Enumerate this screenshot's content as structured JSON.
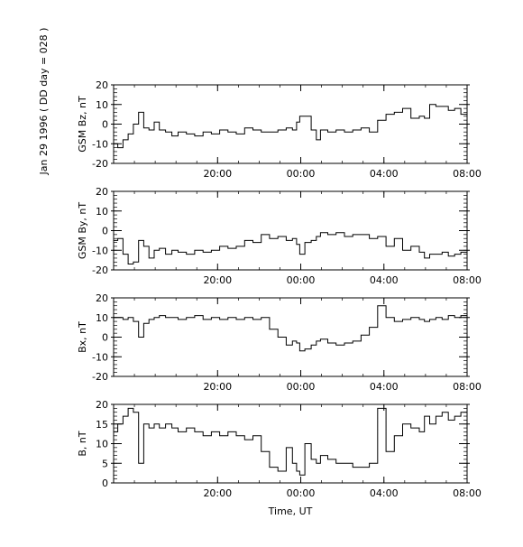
{
  "figure": {
    "date_label": "Jan 29 1996  ( DD day = 028 )",
    "xlabel": "Time, UT"
  },
  "chart_data": [
    {
      "type": "line",
      "ylabel": "GSM Bz, nT",
      "ylim": [
        -20,
        20
      ],
      "yticks": [
        -20,
        -10,
        0,
        10,
        20
      ],
      "xlim": [
        15.0,
        32.0
      ],
      "xticks": [
        20,
        24,
        28,
        32
      ],
      "xtick_labels": [
        "20:00",
        "00:00",
        "04:00",
        "08:00"
      ],
      "x": [
        15.0,
        15.2,
        15.45,
        15.7,
        15.95,
        16.2,
        16.45,
        16.7,
        16.95,
        17.2,
        17.5,
        17.8,
        18.1,
        18.5,
        18.9,
        19.3,
        19.7,
        20.1,
        20.5,
        20.9,
        21.3,
        21.7,
        22.1,
        22.5,
        22.9,
        23.3,
        23.6,
        23.8,
        23.95,
        24.2,
        24.5,
        24.75,
        24.95,
        25.3,
        25.7,
        26.1,
        26.5,
        26.9,
        27.3,
        27.7,
        28.1,
        28.5,
        28.9,
        29.3,
        29.7,
        29.95,
        30.2,
        30.5,
        30.8,
        31.1,
        31.4,
        31.7,
        32.0
      ],
      "y": [
        -10,
        -12,
        -8,
        -5,
        0,
        6,
        -2,
        -3,
        1,
        -3,
        -4,
        -6,
        -4,
        -5,
        -6,
        -4,
        -5,
        -3,
        -4,
        -5,
        -2,
        -3,
        -4,
        -4,
        -3,
        -2,
        -3,
        1,
        4,
        4,
        -3,
        -8,
        -3,
        -4,
        -3,
        -4,
        -3,
        -2,
        -4,
        2,
        5,
        6,
        8,
        3,
        4,
        3,
        10,
        9,
        9,
        7,
        8,
        5,
        5
      ]
    },
    {
      "type": "line",
      "ylabel": "GSM By, nT",
      "ylim": [
        -20,
        20
      ],
      "yticks": [
        -20,
        -10,
        0,
        10,
        20
      ],
      "xlim": [
        15.0,
        32.0
      ],
      "xticks": [
        20,
        24,
        28,
        32
      ],
      "xtick_labels": [
        "20:00",
        "00:00",
        "04:00",
        "08:00"
      ],
      "x": [
        15.0,
        15.2,
        15.45,
        15.7,
        15.95,
        16.2,
        16.45,
        16.7,
        16.95,
        17.2,
        17.5,
        17.8,
        18.1,
        18.5,
        18.9,
        19.3,
        19.7,
        20.1,
        20.5,
        20.9,
        21.3,
        21.7,
        22.1,
        22.5,
        22.9,
        23.3,
        23.6,
        23.8,
        23.95,
        24.2,
        24.5,
        24.75,
        24.95,
        25.3,
        25.7,
        26.1,
        26.5,
        26.9,
        27.3,
        27.7,
        28.1,
        28.5,
        28.9,
        29.3,
        29.7,
        29.95,
        30.2,
        30.5,
        30.8,
        31.1,
        31.4,
        31.7,
        32.0
      ],
      "y": [
        -5,
        -4,
        -12,
        -17,
        -16,
        -5,
        -8,
        -14,
        -10,
        -9,
        -12,
        -10,
        -11,
        -12,
        -10,
        -11,
        -10,
        -8,
        -9,
        -8,
        -5,
        -6,
        -2,
        -4,
        -3,
        -5,
        -4,
        -7,
        -12,
        -6,
        -5,
        -3,
        -1,
        -2,
        -1,
        -3,
        -2,
        -2,
        -4,
        -3,
        -8,
        -4,
        -10,
        -8,
        -11,
        -14,
        -12,
        -12,
        -11,
        -13,
        -12,
        -11,
        -12
      ]
    },
    {
      "type": "line",
      "ylabel": "Bx, nT",
      "ylim": [
        -20,
        20
      ],
      "yticks": [
        -20,
        -10,
        0,
        10,
        20
      ],
      "xlim": [
        15.0,
        32.0
      ],
      "xticks": [
        20,
        24,
        28,
        32
      ],
      "xtick_labels": [
        "20:00",
        "00:00",
        "04:00",
        "08:00"
      ],
      "x": [
        15.0,
        15.2,
        15.45,
        15.7,
        15.95,
        16.2,
        16.45,
        16.7,
        16.95,
        17.2,
        17.5,
        17.8,
        18.1,
        18.5,
        18.9,
        19.3,
        19.7,
        20.1,
        20.5,
        20.9,
        21.3,
        21.7,
        22.1,
        22.5,
        22.9,
        23.3,
        23.6,
        23.8,
        23.95,
        24.2,
        24.5,
        24.75,
        24.95,
        25.3,
        25.7,
        26.1,
        26.5,
        26.9,
        27.3,
        27.7,
        28.1,
        28.5,
        28.9,
        29.3,
        29.7,
        29.95,
        30.2,
        30.5,
        30.8,
        31.1,
        31.4,
        31.7,
        32.0
      ],
      "y": [
        10,
        10,
        9,
        10,
        8,
        0,
        7,
        9,
        10,
        11,
        10,
        10,
        9,
        10,
        11,
        9,
        10,
        9,
        10,
        9,
        10,
        9,
        10,
        4,
        0,
        -4,
        -2,
        -3,
        -7,
        -6,
        -4,
        -2,
        -1,
        -3,
        -4,
        -3,
        -2,
        1,
        5,
        16,
        10,
        8,
        9,
        10,
        9,
        8,
        9,
        10,
        9,
        11,
        10,
        11,
        11
      ]
    },
    {
      "type": "line",
      "ylabel": "B, nT",
      "ylim": [
        0,
        20
      ],
      "yticks": [
        0,
        5,
        10,
        15,
        20
      ],
      "xlim": [
        15.0,
        32.0
      ],
      "xticks": [
        20,
        24,
        28,
        32
      ],
      "xtick_labels": [
        "20:00",
        "00:00",
        "04:00",
        "08:00"
      ],
      "x": [
        15.0,
        15.2,
        15.45,
        15.7,
        15.95,
        16.2,
        16.45,
        16.7,
        16.95,
        17.2,
        17.5,
        17.8,
        18.1,
        18.5,
        18.9,
        19.3,
        19.7,
        20.1,
        20.5,
        20.9,
        21.3,
        21.7,
        22.1,
        22.5,
        22.9,
        23.3,
        23.6,
        23.8,
        23.95,
        24.2,
        24.5,
        24.75,
        24.95,
        25.3,
        25.7,
        26.1,
        26.5,
        26.9,
        27.3,
        27.7,
        28.1,
        28.5,
        28.9,
        29.3,
        29.7,
        29.95,
        30.2,
        30.5,
        30.8,
        31.1,
        31.4,
        31.7,
        32.0
      ],
      "y": [
        13,
        15,
        17,
        19,
        18,
        5,
        15,
        14,
        15,
        14,
        15,
        14,
        13,
        14,
        13,
        12,
        13,
        12,
        13,
        12,
        11,
        12,
        8,
        4,
        3,
        9,
        5,
        3,
        2,
        10,
        6,
        5,
        7,
        6,
        5,
        5,
        4,
        4,
        5,
        19,
        8,
        12,
        15,
        14,
        13,
        17,
        15,
        17,
        18,
        16,
        17,
        18,
        14
      ]
    }
  ]
}
